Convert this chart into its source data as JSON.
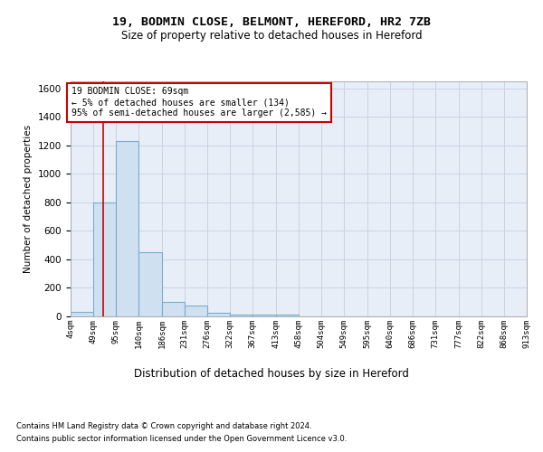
{
  "title1": "19, BODMIN CLOSE, BELMONT, HEREFORD, HR2 7ZB",
  "title2": "Size of property relative to detached houses in Hereford",
  "xlabel": "Distribution of detached houses by size in Hereford",
  "ylabel": "Number of detached properties",
  "footnote1": "Contains HM Land Registry data © Crown copyright and database right 2024.",
  "footnote2": "Contains public sector information licensed under the Open Government Licence v3.0.",
  "annotation_line1": "19 BODMIN CLOSE: 69sqm",
  "annotation_line2": "← 5% of detached houses are smaller (134)",
  "annotation_line3": "95% of semi-detached houses are larger (2,585) →",
  "bin_edges": [
    4,
    49,
    95,
    140,
    186,
    231,
    276,
    322,
    367,
    413,
    458,
    504,
    549,
    595,
    640,
    686,
    731,
    777,
    822,
    868,
    913
  ],
  "bar_heights": [
    30,
    800,
    1230,
    450,
    100,
    75,
    25,
    15,
    10,
    10,
    0,
    0,
    0,
    0,
    0,
    0,
    0,
    0,
    0,
    0
  ],
  "bar_color": "#cfe0f0",
  "bar_edge_color": "#7aaccc",
  "grid_color": "#c8d4e4",
  "background_color": "#e8eef8",
  "red_line_x": 69,
  "ylim": [
    0,
    1650
  ],
  "yticks": [
    0,
    200,
    400,
    600,
    800,
    1000,
    1200,
    1400,
    1600
  ],
  "xtick_labels": [
    "4sqm",
    "49sqm",
    "95sqm",
    "140sqm",
    "186sqm",
    "231sqm",
    "276sqm",
    "322sqm",
    "367sqm",
    "413sqm",
    "458sqm",
    "504sqm",
    "549sqm",
    "595sqm",
    "640sqm",
    "686sqm",
    "731sqm",
    "777sqm",
    "822sqm",
    "868sqm",
    "913sqm"
  ]
}
